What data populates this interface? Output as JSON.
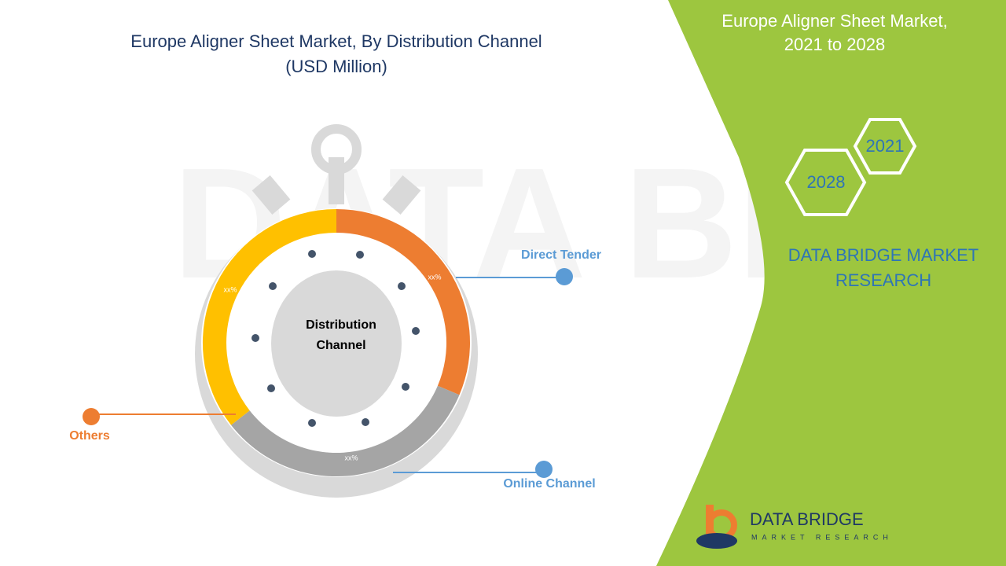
{
  "title": "Europe Aligner Sheet Market, By Distribution Channel",
  "subtitle": "(USD Million)",
  "side_panel": {
    "title_line1": "Europe Aligner Sheet Market,",
    "title_line2": "2021 to 2028",
    "years": [
      "2021",
      "2028"
    ],
    "brand_line1": "DATA BRIDGE MARKET",
    "brand_line2": "RESEARCH"
  },
  "center_label": {
    "line1": "Distribution",
    "line2": "Channel"
  },
  "segments": [
    {
      "name": "Direct Tender",
      "label": "xx%"
    },
    {
      "name": "Online Channel",
      "label": "xx%"
    },
    {
      "name": "Others",
      "label": "xx%"
    }
  ],
  "logo": {
    "line1": "DATA BRIDGE",
    "line2": "MARKET RESEARCH"
  }
}
